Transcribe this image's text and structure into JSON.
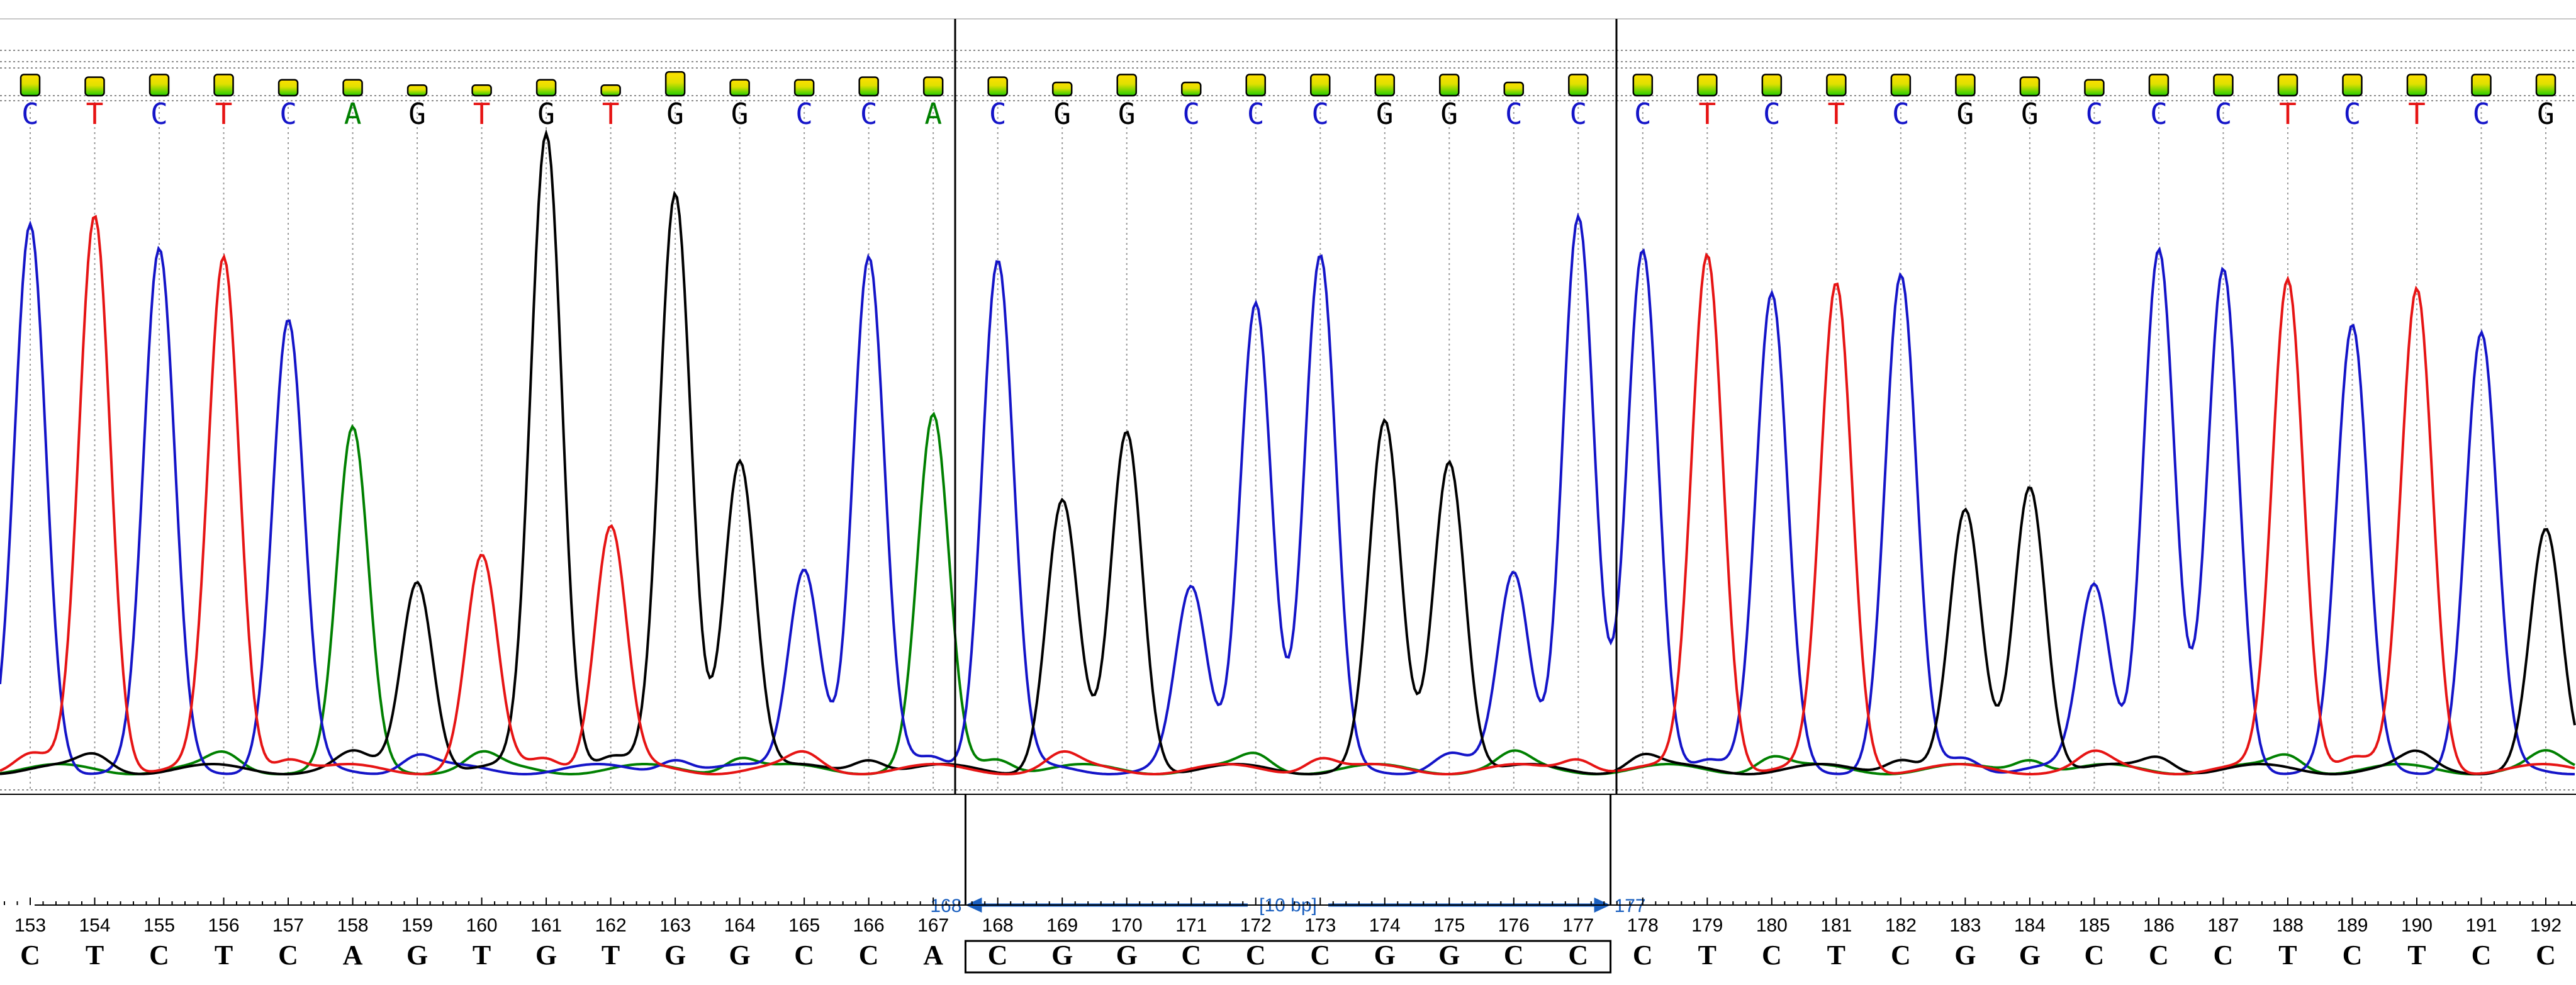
{
  "chart_data": {
    "type": "line",
    "title": "",
    "xlabel": "",
    "ylabel": "",
    "grid": true,
    "colors": {
      "A": "#008000",
      "C": "#1414c8",
      "G": "#000000",
      "T": "#e61414"
    },
    "base_calls": [
      "C",
      "T",
      "C",
      "T",
      "C",
      "A",
      "G",
      "T",
      "G",
      "T",
      "G",
      "G",
      "C",
      "C",
      "A",
      "C",
      "G",
      "G",
      "C",
      "C",
      "C",
      "G",
      "G",
      "C",
      "C",
      "C",
      "T",
      "C",
      "T",
      "C",
      "G",
      "G",
      "C",
      "C",
      "C",
      "T",
      "C",
      "T",
      "C",
      "G"
    ],
    "quality_levels": [
      0.8,
      0.7,
      0.8,
      0.8,
      0.6,
      0.6,
      0.4,
      0.4,
      0.6,
      0.4,
      0.9,
      0.6,
      0.6,
      0.7,
      0.7,
      0.7,
      0.5,
      0.8,
      0.5,
      0.8,
      0.8,
      0.8,
      0.8,
      0.5,
      0.8,
      0.8,
      0.8,
      0.8,
      0.8,
      0.8,
      0.8,
      0.7,
      0.6,
      0.8,
      0.8,
      0.8,
      0.8,
      0.8,
      0.8,
      0.8
    ],
    "peak_heights": [
      0.85,
      0.87,
      0.81,
      0.8,
      0.7,
      0.53,
      0.3,
      0.33,
      1.0,
      0.38,
      0.9,
      0.49,
      0.32,
      0.8,
      0.55,
      0.8,
      0.42,
      0.53,
      0.28,
      0.74,
      0.8,
      0.54,
      0.49,
      0.31,
      0.87,
      0.81,
      0.81,
      0.74,
      0.76,
      0.77,
      0.4,
      0.45,
      0.29,
      0.82,
      0.78,
      0.77,
      0.69,
      0.75,
      0.68,
      0.37
    ],
    "reference": {
      "positions": [
        "153",
        "154",
        "155",
        "156",
        "157",
        "158",
        "159",
        "160",
        "161",
        "162",
        "163",
        "164",
        "165",
        "166",
        "167",
        "168",
        "169",
        "170",
        "171",
        "172",
        "173",
        "174",
        "175",
        "176",
        "177",
        "178",
        "179",
        "180",
        "181",
        "182",
        "183",
        "184",
        "185",
        "186",
        "187",
        "188",
        "189",
        "190",
        "191",
        "192"
      ],
      "bases": [
        "C",
        "T",
        "C",
        "T",
        "C",
        "A",
        "G",
        "T",
        "G",
        "T",
        "G",
        "G",
        "C",
        "C",
        "A",
        "C",
        "G",
        "G",
        "C",
        "C",
        "C",
        "G",
        "G",
        "C",
        "C",
        "C",
        "T",
        "C",
        "T",
        "C",
        "G",
        "G",
        "C",
        "C",
        "C",
        "T",
        "C",
        "T",
        "C",
        "C"
      ]
    },
    "selection": {
      "start_label": "168",
      "end_label": "177",
      "length_label": "[10 bp]",
      "start_index": 15,
      "end_index": 24
    }
  }
}
